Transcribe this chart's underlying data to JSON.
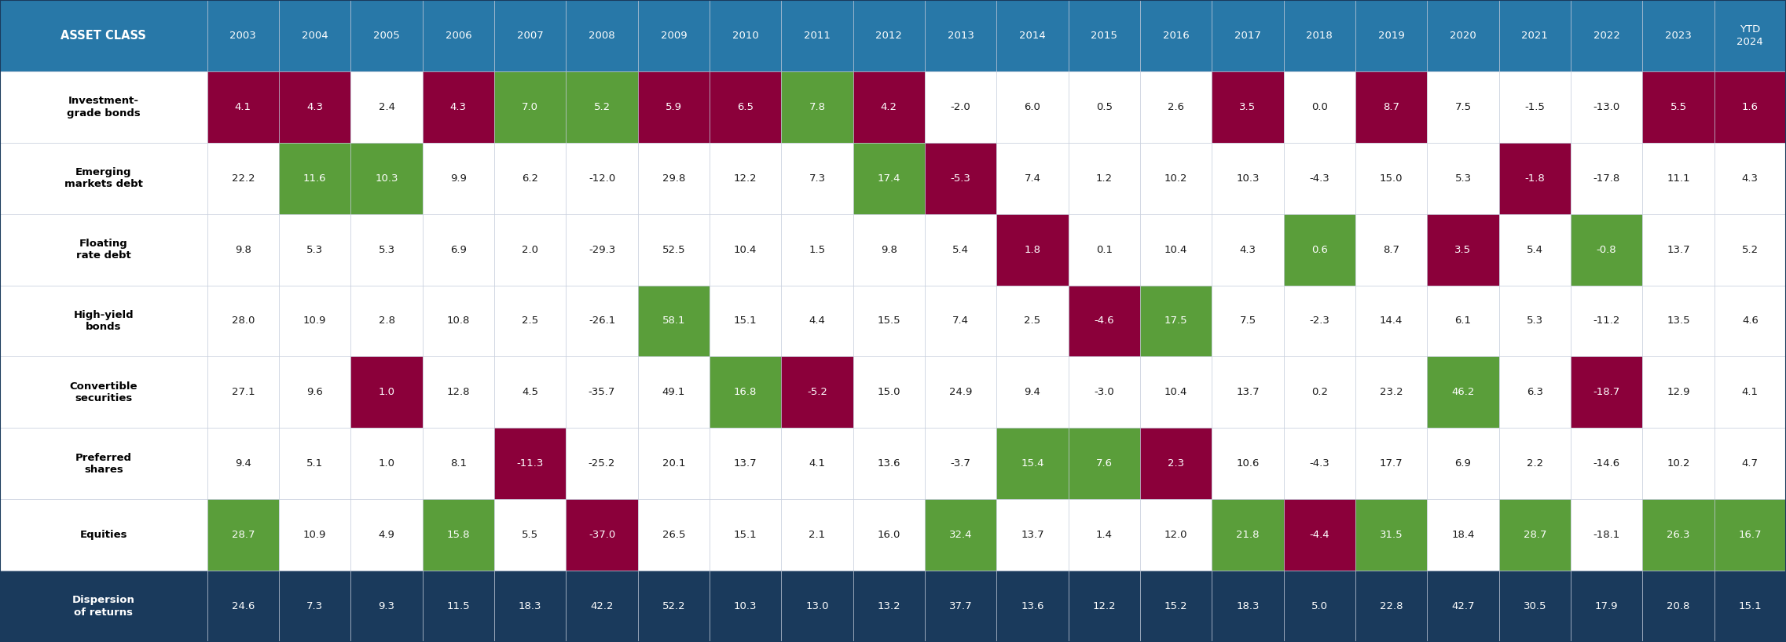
{
  "header_row": [
    "ASSET CLASS",
    "2003",
    "2004",
    "2005",
    "2006",
    "2007",
    "2008",
    "2009",
    "2010",
    "2011",
    "2012",
    "2013",
    "2014",
    "2015",
    "2016",
    "2017",
    "2018",
    "2019",
    "2020",
    "2021",
    "2022",
    "2023",
    "YTD\n2024"
  ],
  "rows": [
    {
      "label": "Investment-\ngrade bonds",
      "values": [
        4.1,
        4.3,
        2.4,
        4.3,
        7.0,
        5.2,
        5.9,
        6.5,
        7.8,
        4.2,
        -2.0,
        6.0,
        0.5,
        2.6,
        3.5,
        0.0,
        8.7,
        7.5,
        -1.5,
        -13.0,
        5.5,
        1.6
      ]
    },
    {
      "label": "Emerging\nmarkets debt",
      "values": [
        22.2,
        11.6,
        10.3,
        9.9,
        6.2,
        -12.0,
        29.8,
        12.2,
        7.3,
        17.4,
        -5.3,
        7.4,
        1.2,
        10.2,
        10.3,
        -4.3,
        15.0,
        5.3,
        -1.8,
        -17.8,
        11.1,
        4.3
      ]
    },
    {
      "label": "Floating\nrate debt",
      "values": [
        9.8,
        5.3,
        5.3,
        6.9,
        2.0,
        -29.3,
        52.5,
        10.4,
        1.5,
        9.8,
        5.4,
        1.8,
        0.1,
        10.4,
        4.3,
        0.6,
        8.7,
        3.5,
        5.4,
        -0.8,
        13.7,
        5.2
      ]
    },
    {
      "label": "High-yield\nbonds",
      "values": [
        28.0,
        10.9,
        2.8,
        10.8,
        2.5,
        -26.1,
        58.1,
        15.1,
        4.4,
        15.5,
        7.4,
        2.5,
        -4.6,
        17.5,
        7.5,
        -2.3,
        14.4,
        6.1,
        5.3,
        -11.2,
        13.5,
        4.6
      ]
    },
    {
      "label": "Convertible\nsecurities",
      "values": [
        27.1,
        9.6,
        1.0,
        12.8,
        4.5,
        -35.7,
        49.1,
        16.8,
        -5.2,
        15.0,
        24.9,
        9.4,
        -3.0,
        10.4,
        13.7,
        0.2,
        23.2,
        46.2,
        6.3,
        -18.7,
        12.9,
        4.1
      ]
    },
    {
      "label": "Preferred\nshares",
      "values": [
        9.4,
        5.1,
        1.0,
        8.1,
        -11.3,
        -25.2,
        20.1,
        13.7,
        4.1,
        13.6,
        -3.7,
        15.4,
        7.6,
        2.3,
        10.6,
        -4.3,
        17.7,
        6.9,
        2.2,
        -14.6,
        10.2,
        4.7
      ]
    },
    {
      "label": "Equities",
      "values": [
        28.7,
        10.9,
        4.9,
        15.8,
        5.5,
        -37.0,
        26.5,
        15.1,
        2.1,
        16.0,
        32.4,
        13.7,
        1.4,
        12.0,
        21.8,
        -4.4,
        31.5,
        18.4,
        28.7,
        -18.1,
        26.3,
        16.7
      ]
    },
    {
      "label": "Dispersion\nof returns",
      "values": [
        24.6,
        7.3,
        9.3,
        11.5,
        18.3,
        42.2,
        52.2,
        10.3,
        13.0,
        13.2,
        37.7,
        13.6,
        12.2,
        15.2,
        18.3,
        5.0,
        22.8,
        42.7,
        30.5,
        17.9,
        20.8,
        15.1
      ],
      "is_dispersion": true
    }
  ],
  "header_bg": "#2878a8",
  "header_fg": "#ffffff",
  "dispersion_bg": "#1a3a5c",
  "dispersion_fg": "#ffffff",
  "label_fg": "#000000",
  "default_bg": "#ffffff",
  "default_fg": "#1a1a1a",
  "green_bg": "#5a9e3a",
  "green_fg": "#ffffff",
  "red_bg": "#8b003a",
  "red_fg": "#ffffff",
  "col_header_blue": "#2878a8",
  "asset_class_header_bg": "#2878a8",
  "grid_color": "#c0c8d8"
}
